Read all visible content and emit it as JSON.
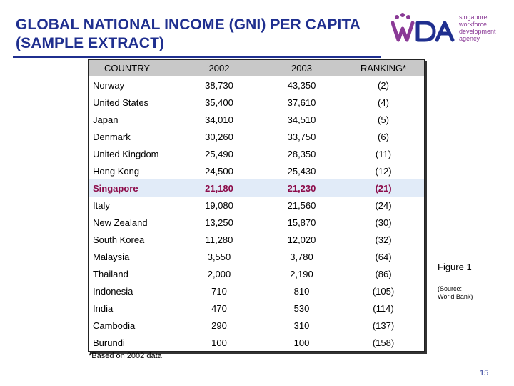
{
  "title": {
    "line1": "GLOBAL NATIONAL INCOME (GNI) PER CAPITA",
    "line2": "(SAMPLE EXTRACT)"
  },
  "logo": {
    "wordmark": "WDA",
    "text_lines": [
      "singapore",
      "workforce",
      "development",
      "agency"
    ],
    "colors": {
      "blue": "#1f2f8f",
      "purple": "#8a3a96"
    }
  },
  "table": {
    "headers": [
      "COUNTRY",
      "2002",
      "2003",
      "RANKING*"
    ],
    "rows": [
      {
        "country": "Norway",
        "y2002": "38,730",
        "y2003": "43,350",
        "rank": "(2)"
      },
      {
        "country": "United States",
        "y2002": "35,400",
        "y2003": "37,610",
        "rank": "(4)"
      },
      {
        "country": "Japan",
        "y2002": "34,010",
        "y2003": "34,510",
        "rank": "(5)"
      },
      {
        "country": "Denmark",
        "y2002": "30,260",
        "y2003": "33,750",
        "rank": "(6)"
      },
      {
        "country": "United Kingdom",
        "y2002": "25,490",
        "y2003": "28,350",
        "rank": "(11)"
      },
      {
        "country": "Hong Kong",
        "y2002": "24,500",
        "y2003": "25,430",
        "rank": "(12)"
      },
      {
        "country": "Singapore",
        "y2002": "21,180",
        "y2003": "21,230",
        "rank": "(21)",
        "highlight": true
      },
      {
        "country": "Italy",
        "y2002": "19,080",
        "y2003": "21,560",
        "rank": "(24)"
      },
      {
        "country": "New Zealand",
        "y2002": "13,250",
        "y2003": "15,870",
        "rank": "(30)"
      },
      {
        "country": "South Korea",
        "y2002": "11,280",
        "y2003": "12,020",
        "rank": "(32)"
      },
      {
        "country": "Malaysia",
        "y2002": "3,550",
        "y2003": "3,780",
        "rank": "(64)"
      },
      {
        "country": "Thailand",
        "y2002": "2,000",
        "y2003": "2,190",
        "rank": "(86)"
      },
      {
        "country": "Indonesia",
        "y2002": "710",
        "y2003": "810",
        "rank": "(105)"
      },
      {
        "country": "India",
        "y2002": "470",
        "y2003": "530",
        "rank": "(114)"
      },
      {
        "country": "Cambodia",
        "y2002": "290",
        "y2003": "310",
        "rank": "(137)"
      },
      {
        "country": "Burundi",
        "y2002": "100",
        "y2003": "100",
        "rank": "(158)"
      }
    ],
    "colors": {
      "header_bg": "#c8c8c8",
      "highlight_bg": "#e1ebf8",
      "highlight_text": "#8c0b4a"
    }
  },
  "footnote": "*Based on 2002 data",
  "figure_label": "Figure 1",
  "source_lines": [
    "(Source:",
    "World Bank)"
  ],
  "page_number": "15"
}
